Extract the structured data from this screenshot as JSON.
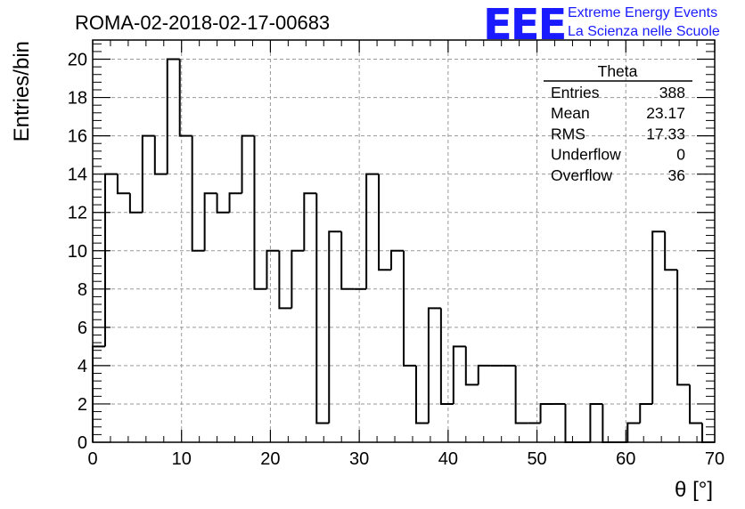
{
  "chart_data": {
    "type": "bar",
    "title": "ROMA-02-2018-02-17-00683",
    "xlabel": "θ [°]",
    "ylabel": "Entries/bin",
    "xlim": [
      0,
      70
    ],
    "ylim": [
      0,
      21
    ],
    "grid": true,
    "x_ticks": [
      "0",
      "10",
      "20",
      "30",
      "40",
      "50",
      "60",
      "70"
    ],
    "y_ticks": [
      "0",
      "2",
      "4",
      "6",
      "8",
      "10",
      "12",
      "14",
      "16",
      "18",
      "20"
    ],
    "bin_width": 1.4,
    "values": [
      5,
      14,
      13,
      12,
      16,
      14,
      20,
      16,
      10,
      13,
      12,
      13,
      16,
      8,
      10,
      7,
      10,
      13,
      1,
      11,
      8,
      8,
      14,
      9,
      10,
      4,
      1,
      7,
      2,
      5,
      3,
      4,
      4,
      4,
      1,
      1,
      2,
      2,
      0,
      0,
      2,
      0,
      0,
      1,
      2,
      11,
      9,
      3,
      1,
      0
    ]
  },
  "stats_box": {
    "title": "Theta",
    "rows": [
      {
        "label": "Entries",
        "value": "388"
      },
      {
        "label": "Mean",
        "value": "23.17"
      },
      {
        "label": "RMS",
        "value": "17.33"
      },
      {
        "label": "Underflow",
        "value": "0"
      },
      {
        "label": "Overflow",
        "value": "36"
      }
    ]
  },
  "logo": {
    "mark": "EEE",
    "line1": "Extreme Energy Events",
    "line2": "La Scienza nelle Scuole",
    "color": "#1a1aff"
  }
}
